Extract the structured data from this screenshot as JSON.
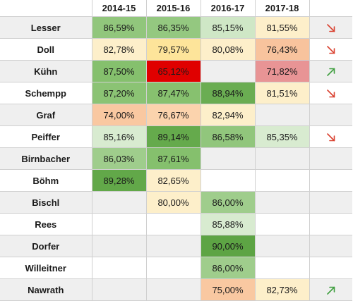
{
  "header": [
    "",
    "2014-15",
    "2015-16",
    "2016-17",
    "2017-18"
  ],
  "rows": [
    {
      "name": "Lesser",
      "cells": [
        {
          "v": "86,59%",
          "c": "#91c67c"
        },
        {
          "v": "86,35%",
          "c": "#94c880"
        },
        {
          "v": "85,15%",
          "c": "#cfe7c6"
        },
        {
          "v": "81,55%",
          "c": "#fdefca"
        }
      ],
      "trend": "down"
    },
    {
      "name": "Doll",
      "cells": [
        {
          "v": "82,78%",
          "c": "#fdefca"
        },
        {
          "v": "79,57%",
          "c": "#fde49a"
        },
        {
          "v": "80,08%",
          "c": "#fdefca"
        },
        {
          "v": "76,43%",
          "c": "#f8c39d"
        }
      ],
      "trend": "down"
    },
    {
      "name": "Kühn",
      "cells": [
        {
          "v": "87,50%",
          "c": "#85c06d"
        },
        {
          "v": "65,12%",
          "c": "#e00000"
        },
        {
          "v": "",
          "c": ""
        },
        {
          "v": "71,82%",
          "c": "#e89495"
        }
      ],
      "trend": "up"
    },
    {
      "name": "Schempp",
      "cells": [
        {
          "v": "87,20%",
          "c": "#8bc374"
        },
        {
          "v": "87,47%",
          "c": "#87c16f"
        },
        {
          "v": "88,94%",
          "c": "#6aad52"
        },
        {
          "v": "81,51%",
          "c": "#fdefca"
        }
      ],
      "trend": "down"
    },
    {
      "name": "Graf",
      "cells": [
        {
          "v": "74,00%",
          "c": "#f9c8a1"
        },
        {
          "v": "76,67%",
          "c": "#fbd3ad"
        },
        {
          "v": "82,94%",
          "c": "#fdefca"
        },
        {
          "v": "",
          "c": ""
        }
      ],
      "trend": ""
    },
    {
      "name": "Peiffer",
      "cells": [
        {
          "v": "85,16%",
          "c": "#d8ebd0"
        },
        {
          "v": "89,14%",
          "c": "#65aa4c"
        },
        {
          "v": "86,58%",
          "c": "#91c67c"
        },
        {
          "v": "85,35%",
          "c": "#d8ebd0"
        }
      ],
      "trend": "down"
    },
    {
      "name": "Birnbacher",
      "cells": [
        {
          "v": "86,03%",
          "c": "#9fcd8c"
        },
        {
          "v": "87,61%",
          "c": "#85c06d"
        },
        {
          "v": "",
          "c": ""
        },
        {
          "v": "",
          "c": ""
        }
      ],
      "trend": ""
    },
    {
      "name": "Böhm",
      "cells": [
        {
          "v": "89,28%",
          "c": "#62a849"
        },
        {
          "v": "82,65%",
          "c": "#fdefca"
        },
        {
          "v": "",
          "c": ""
        },
        {
          "v": "",
          "c": ""
        }
      ],
      "trend": ""
    },
    {
      "name": "Bischl",
      "cells": [
        {
          "v": "",
          "c": ""
        },
        {
          "v": "80,00%",
          "c": "#fdefca"
        },
        {
          "v": "86,00%",
          "c": "#9fcd8c"
        },
        {
          "v": "",
          "c": ""
        }
      ],
      "trend": ""
    },
    {
      "name": "Rees",
      "cells": [
        {
          "v": "",
          "c": ""
        },
        {
          "v": "",
          "c": ""
        },
        {
          "v": "85,88%",
          "c": "#d8ebd0"
        },
        {
          "v": "",
          "c": ""
        }
      ],
      "trend": ""
    },
    {
      "name": "Dorfer",
      "cells": [
        {
          "v": "",
          "c": ""
        },
        {
          "v": "",
          "c": ""
        },
        {
          "v": "90,00%",
          "c": "#5da444"
        },
        {
          "v": "",
          "c": ""
        }
      ],
      "trend": ""
    },
    {
      "name": "Willeitner",
      "cells": [
        {
          "v": "",
          "c": ""
        },
        {
          "v": "",
          "c": ""
        },
        {
          "v": "86,00%",
          "c": "#9fcd8c"
        },
        {
          "v": "",
          "c": ""
        }
      ],
      "trend": ""
    },
    {
      "name": "Nawrath",
      "cells": [
        {
          "v": "",
          "c": ""
        },
        {
          "v": "",
          "c": ""
        },
        {
          "v": "75,00%",
          "c": "#f9c8a1"
        },
        {
          "v": "82,73%",
          "c": "#fdefca"
        }
      ],
      "trend": "up"
    }
  ],
  "colors": {
    "trend_down": "#d9402f",
    "trend_up": "#3f9e3f",
    "shade": "#efefef"
  },
  "icons": {
    "down": "arrow-down-right-icon",
    "up": "arrow-up-right-icon"
  }
}
